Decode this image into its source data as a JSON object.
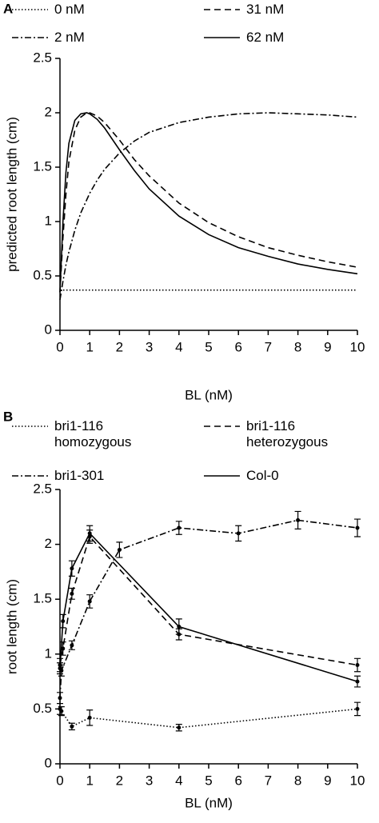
{
  "chart_data": [
    {
      "type": "line",
      "panel": "A",
      "xlabel": "BL (nM)",
      "ylabel": "predicted root length (cm)",
      "x": [
        0,
        0.1,
        0.2,
        0.3,
        0.5,
        0.7,
        0.9,
        1,
        1.25,
        1.5,
        2,
        2.5,
        3,
        4,
        5,
        6,
        7,
        8,
        9,
        10
      ],
      "series": [
        {
          "name": "0 nM",
          "color": "#000000",
          "style": "dotted",
          "values": [
            0.37,
            0.37,
            0.37,
            0.37,
            0.37,
            0.37,
            0.37,
            0.37,
            0.37,
            0.37,
            0.37,
            0.37,
            0.37,
            0.37,
            0.37,
            0.37,
            0.37,
            0.37,
            0.37,
            0.37
          ]
        },
        {
          "name": "2 nM",
          "color": "#000000",
          "style": "dash-dot",
          "values": [
            0.28,
            0.45,
            0.6,
            0.72,
            0.92,
            1.08,
            1.2,
            1.26,
            1.38,
            1.48,
            1.63,
            1.74,
            1.82,
            1.91,
            1.96,
            1.99,
            2.0,
            1.99,
            1.98,
            1.96
          ]
        },
        {
          "name": "31 nM",
          "color": "#000000",
          "style": "dashed",
          "values": [
            0.35,
            0.85,
            1.25,
            1.55,
            1.84,
            1.96,
            2.0,
            2.0,
            1.97,
            1.91,
            1.75,
            1.57,
            1.42,
            1.17,
            0.99,
            0.86,
            0.76,
            0.69,
            0.63,
            0.58
          ]
        },
        {
          "name": "62 nM",
          "color": "#000000",
          "style": "solid",
          "values": [
            0.35,
            1.0,
            1.45,
            1.72,
            1.93,
            1.99,
            2.0,
            1.99,
            1.94,
            1.86,
            1.66,
            1.47,
            1.3,
            1.05,
            0.88,
            0.76,
            0.68,
            0.61,
            0.56,
            0.52
          ]
        }
      ],
      "xlim": [
        0,
        10
      ],
      "xticks": [
        0,
        1,
        2,
        3,
        4,
        5,
        6,
        7,
        8,
        9,
        10
      ],
      "ylim": [
        0,
        2.5
      ],
      "yticks": [
        0,
        0.5,
        1,
        1.5,
        2,
        2.5
      ],
      "grid": false
    },
    {
      "type": "line",
      "panel": "B",
      "xlabel": "BL (nM)",
      "ylabel": "root length (cm)",
      "series": [
        {
          "name": "bri1-116 homozygous",
          "color": "#000000",
          "style": "dotted",
          "x": [
            0,
            0.05,
            0.4,
            1,
            4,
            10
          ],
          "values": [
            0.5,
            0.48,
            0.34,
            0.42,
            0.33,
            0.5
          ],
          "errors": [
            0.05,
            0.04,
            0.03,
            0.07,
            0.03,
            0.06
          ]
        },
        {
          "name": "bri1-116 heterozygous",
          "color": "#000000",
          "style": "dashed",
          "x": [
            0,
            0.1,
            0.4,
            1,
            4,
            10
          ],
          "values": [
            0.9,
            1.05,
            1.55,
            2.07,
            1.18,
            0.9
          ],
          "errors": [
            0.06,
            0.06,
            0.05,
            0.06,
            0.05,
            0.06
          ]
        },
        {
          "name": "bri1-301",
          "color": "#000000",
          "style": "dash-dot",
          "x": [
            0,
            0.05,
            0.4,
            1,
            2,
            4,
            6,
            8,
            10
          ],
          "values": [
            0.6,
            0.85,
            1.08,
            1.48,
            1.95,
            2.15,
            2.1,
            2.22,
            2.15
          ],
          "errors": [
            0.05,
            0.05,
            0.04,
            0.06,
            0.07,
            0.06,
            0.07,
            0.08,
            0.08
          ]
        },
        {
          "name": "Col-0",
          "color": "#000000",
          "style": "solid",
          "x": [
            0,
            0.1,
            0.4,
            1,
            4,
            10
          ],
          "values": [
            0.87,
            1.3,
            1.78,
            2.1,
            1.25,
            0.75
          ],
          "errors": [
            0.05,
            0.06,
            0.07,
            0.07,
            0.07,
            0.05
          ]
        }
      ],
      "xlim": [
        0,
        10
      ],
      "xticks": [
        0,
        1,
        2,
        3,
        4,
        5,
        6,
        7,
        8,
        9,
        10
      ],
      "ylim": [
        0,
        2.5
      ],
      "yticks": [
        0,
        0.5,
        1,
        1.5,
        2,
        2.5
      ],
      "grid": false
    }
  ]
}
